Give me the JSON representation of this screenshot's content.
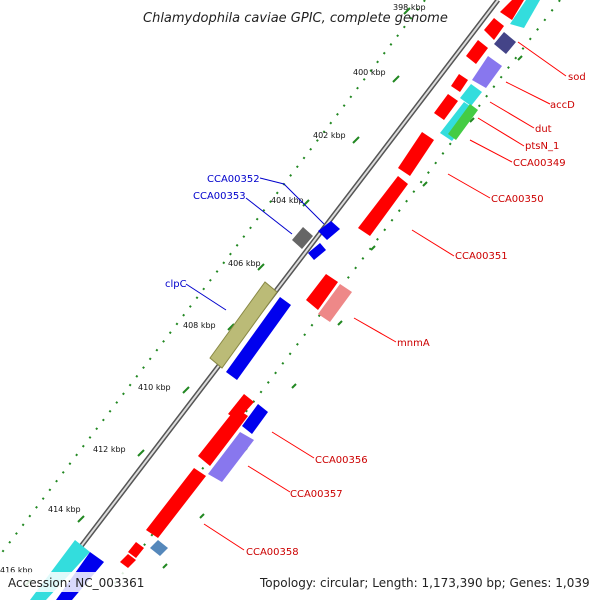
{
  "title": "Chlamydophila caviae GPIC, complete genome",
  "footer": {
    "accession": "Accession: NC_003361",
    "topology": "Topology: circular; Length: 1,173,390 bp; Genes: 1,039"
  },
  "ticks": [
    "398 kbp",
    "400 kbp",
    "402 kbp",
    "404 kbp",
    "406 kbp",
    "408 kbp",
    "410 kbp",
    "412 kbp",
    "414 kbp",
    "416 kbp"
  ],
  "labels_right": [
    "sod",
    "accD",
    "dut",
    "ptsN_1",
    "CCA00349",
    "CCA00350",
    "CCA00351",
    "mnmA",
    "CCA00356",
    "CCA00357",
    "CCA00358"
  ],
  "labels_left": [
    "CCA00352",
    "CCA00353",
    "clpC"
  ],
  "colors": {
    "forward_gene": "#ff0000",
    "reverse_gene": "#0000ff",
    "backbone": "#888888",
    "tick_marks": "#228822",
    "label_right": "#cc0000",
    "label_left": "#0000cc",
    "cyan_feature": "#33dddd",
    "purple_feature": "#8877ee",
    "green_feature": "#44cc44",
    "olive_feature": "#bbbb77",
    "gray_feature": "#666666",
    "pink_feature": "#ee8888",
    "navy_feature": "#444488",
    "steel_feature": "#5588bb"
  }
}
